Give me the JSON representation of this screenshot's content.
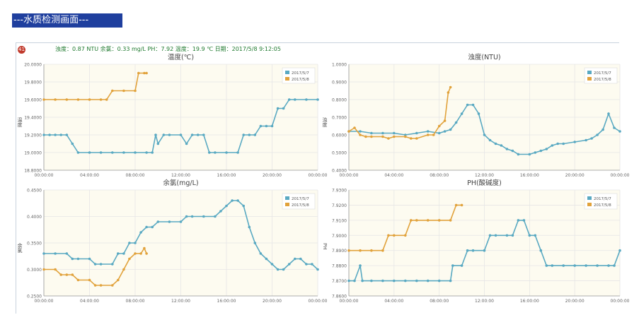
{
  "page_title": "---水质检测画面---",
  "status": {
    "badge": "41",
    "text": "浊度：0.87 NTU  余氯：0.33 mg/L  PH：7.92  温度：19.9 ℃  日期：2017/5/8 9:12:05"
  },
  "colors": {
    "series1": "#59a9c2",
    "series2": "#e1a23b",
    "grid": "#e6e6e6",
    "plot_bg": "#fdfbf0"
  },
  "chart_data": [
    {
      "type": "line",
      "title": "温度(℃)",
      "ylabel": "温度",
      "ylim": [
        18.8,
        20.0
      ],
      "yticks": [
        "18.8000",
        "19.0000",
        "19.2000",
        "19.4000",
        "19.6000",
        "19.8000",
        "20.0000"
      ],
      "xticks": [
        "00:00:00",
        "04:00:00",
        "08:00:00",
        "12:00:00",
        "16:00:00",
        "20:00:00",
        "00:00:00"
      ],
      "legend": [
        "2017/5/7",
        "2017/5/8"
      ],
      "series": [
        {
          "name": "2017/5/7",
          "points": [
            [
              0,
              19.2
            ],
            [
              0.5,
              19.2
            ],
            [
              1,
              19.2
            ],
            [
              1.5,
              19.2
            ],
            [
              2,
              19.2
            ],
            [
              2.5,
              19.1
            ],
            [
              3,
              19.0
            ],
            [
              4,
              19.0
            ],
            [
              5,
              19.0
            ],
            [
              6,
              19.0
            ],
            [
              7,
              19.0
            ],
            [
              8,
              19.0
            ],
            [
              9,
              19.0
            ],
            [
              9.5,
              19.0
            ],
            [
              9.8,
              19.2
            ],
            [
              10,
              19.1
            ],
            [
              10.5,
              19.2
            ],
            [
              11,
              19.2
            ],
            [
              12,
              19.2
            ],
            [
              12.5,
              19.1
            ],
            [
              13,
              19.2
            ],
            [
              13.5,
              19.2
            ],
            [
              14,
              19.2
            ],
            [
              14.5,
              19.0
            ],
            [
              15,
              19.0
            ],
            [
              16,
              19.0
            ],
            [
              17,
              19.0
            ],
            [
              17.5,
              19.2
            ],
            [
              18,
              19.2
            ],
            [
              18.5,
              19.2
            ],
            [
              19,
              19.3
            ],
            [
              19.5,
              19.3
            ],
            [
              20,
              19.3
            ],
            [
              20.5,
              19.5
            ],
            [
              21,
              19.5
            ],
            [
              21.5,
              19.6
            ],
            [
              22,
              19.6
            ],
            [
              23,
              19.6
            ],
            [
              24,
              19.6
            ]
          ]
        },
        {
          "name": "2017/5/8",
          "points": [
            [
              0,
              19.6
            ],
            [
              1,
              19.6
            ],
            [
              2,
              19.6
            ],
            [
              3,
              19.6
            ],
            [
              4,
              19.6
            ],
            [
              5,
              19.6
            ],
            [
              5.5,
              19.6
            ],
            [
              6,
              19.7
            ],
            [
              7,
              19.7
            ],
            [
              8,
              19.7
            ],
            [
              8.3,
              19.9
            ],
            [
              8.8,
              19.9
            ],
            [
              9,
              19.9
            ]
          ]
        }
      ]
    },
    {
      "type": "line",
      "title": "浊度(NTU)",
      "ylabel": "浊度",
      "ylim": [
        0.4,
        1.0
      ],
      "yticks": [
        "0.4000",
        "0.5000",
        "0.6000",
        "0.7000",
        "0.8000",
        "0.9000",
        "1.0000"
      ],
      "xticks": [
        "00:00:00",
        "04:00:00",
        "08:00:00",
        "12:00:00",
        "16:00:00",
        "20:00:00",
        "00:00:00"
      ],
      "legend": [
        "2017/5/7",
        "2017/5/8"
      ],
      "series": [
        {
          "name": "2017/5/7",
          "points": [
            [
              0,
              0.62
            ],
            [
              1,
              0.62
            ],
            [
              2,
              0.61
            ],
            [
              3,
              0.61
            ],
            [
              4,
              0.61
            ],
            [
              5,
              0.6
            ],
            [
              6,
              0.61
            ],
            [
              7,
              0.62
            ],
            [
              8,
              0.61
            ],
            [
              8.5,
              0.62
            ],
            [
              9,
              0.63
            ],
            [
              9.5,
              0.67
            ],
            [
              10,
              0.72
            ],
            [
              10.5,
              0.77
            ],
            [
              11,
              0.77
            ],
            [
              11.5,
              0.72
            ],
            [
              12,
              0.6
            ],
            [
              12.5,
              0.57
            ],
            [
              13,
              0.55
            ],
            [
              13.5,
              0.54
            ],
            [
              14,
              0.52
            ],
            [
              14.5,
              0.51
            ],
            [
              15,
              0.49
            ],
            [
              16,
              0.49
            ],
            [
              16.5,
              0.5
            ],
            [
              17,
              0.51
            ],
            [
              17.5,
              0.52
            ],
            [
              18,
              0.54
            ],
            [
              18.5,
              0.55
            ],
            [
              19,
              0.55
            ],
            [
              20,
              0.56
            ],
            [
              21,
              0.57
            ],
            [
              21.5,
              0.58
            ],
            [
              22,
              0.6
            ],
            [
              22.5,
              0.63
            ],
            [
              23,
              0.72
            ],
            [
              23.5,
              0.64
            ],
            [
              24,
              0.62
            ]
          ]
        },
        {
          "name": "2017/5/8",
          "points": [
            [
              0,
              0.62
            ],
            [
              0.5,
              0.64
            ],
            [
              1,
              0.6
            ],
            [
              1.5,
              0.59
            ],
            [
              2,
              0.59
            ],
            [
              3,
              0.59
            ],
            [
              3.5,
              0.58
            ],
            [
              4,
              0.59
            ],
            [
              5,
              0.59
            ],
            [
              5.5,
              0.58
            ],
            [
              6,
              0.58
            ],
            [
              7,
              0.6
            ],
            [
              7.5,
              0.6
            ],
            [
              8,
              0.65
            ],
            [
              8.5,
              0.68
            ],
            [
              8.8,
              0.84
            ],
            [
              9,
              0.87
            ]
          ]
        }
      ]
    },
    {
      "type": "line",
      "title": "余氯(mg/L)",
      "ylabel": "余氯",
      "ylim": [
        0.25,
        0.45
      ],
      "yticks": [
        "0.2500",
        "0.3000",
        "0.3500",
        "0.4000",
        "0.4500"
      ],
      "xticks": [
        "00:00:00",
        "04:00:00",
        "08:00:00",
        "12:00:00",
        "16:00:00",
        "20:00:00",
        "00:00:00"
      ],
      "legend": [
        "2017/5/7",
        "2017/5/8"
      ],
      "series": [
        {
          "name": "2017/5/7",
          "points": [
            [
              0,
              0.33
            ],
            [
              1,
              0.33
            ],
            [
              2,
              0.33
            ],
            [
              2.5,
              0.32
            ],
            [
              3,
              0.32
            ],
            [
              4,
              0.32
            ],
            [
              4.5,
              0.31
            ],
            [
              5,
              0.31
            ],
            [
              6,
              0.31
            ],
            [
              6.5,
              0.33
            ],
            [
              7,
              0.33
            ],
            [
              7.5,
              0.35
            ],
            [
              8,
              0.35
            ],
            [
              8.5,
              0.37
            ],
            [
              9,
              0.38
            ],
            [
              9.5,
              0.38
            ],
            [
              10,
              0.39
            ],
            [
              11,
              0.39
            ],
            [
              12,
              0.39
            ],
            [
              12.5,
              0.4
            ],
            [
              13,
              0.4
            ],
            [
              14,
              0.4
            ],
            [
              15,
              0.4
            ],
            [
              15.5,
              0.41
            ],
            [
              16,
              0.42
            ],
            [
              16.5,
              0.43
            ],
            [
              17,
              0.43
            ],
            [
              17.5,
              0.42
            ],
            [
              18,
              0.38
            ],
            [
              18.5,
              0.35
            ],
            [
              19,
              0.33
            ],
            [
              19.5,
              0.32
            ],
            [
              20,
              0.31
            ],
            [
              20.5,
              0.3
            ],
            [
              21,
              0.3
            ],
            [
              21.5,
              0.31
            ],
            [
              22,
              0.32
            ],
            [
              22.5,
              0.32
            ],
            [
              23,
              0.31
            ],
            [
              23.5,
              0.31
            ],
            [
              24,
              0.3
            ]
          ]
        },
        {
          "name": "2017/5/8",
          "points": [
            [
              0,
              0.3
            ],
            [
              1,
              0.3
            ],
            [
              1.5,
              0.29
            ],
            [
              2,
              0.29
            ],
            [
              2.5,
              0.29
            ],
            [
              3,
              0.28
            ],
            [
              4,
              0.28
            ],
            [
              4.5,
              0.27
            ],
            [
              5,
              0.27
            ],
            [
              6,
              0.27
            ],
            [
              6.5,
              0.28
            ],
            [
              7,
              0.3
            ],
            [
              7.5,
              0.32
            ],
            [
              8,
              0.33
            ],
            [
              8.5,
              0.33
            ],
            [
              8.8,
              0.34
            ],
            [
              9,
              0.33
            ]
          ]
        }
      ]
    },
    {
      "type": "line",
      "title": "PH(酸碱度)",
      "ylabel": "PH",
      "ylim": [
        7.86,
        7.93
      ],
      "yticks": [
        "7.8600",
        "7.8700",
        "7.8800",
        "7.8900",
        "7.9000",
        "7.9100",
        "7.9200",
        "7.9300"
      ],
      "xticks": [
        "00:00:00",
        "04:00:00",
        "08:00:00",
        "12:00:00",
        "16:00:00",
        "20:00:00",
        "00:00:00"
      ],
      "legend": [
        "2017/5/7",
        "2017/5/8"
      ],
      "series": [
        {
          "name": "2017/5/7",
          "points": [
            [
              0,
              7.87
            ],
            [
              0.5,
              7.87
            ],
            [
              1,
              7.88
            ],
            [
              1.2,
              7.87
            ],
            [
              2,
              7.87
            ],
            [
              3,
              7.87
            ],
            [
              4,
              7.87
            ],
            [
              5,
              7.87
            ],
            [
              6,
              7.87
            ],
            [
              7,
              7.87
            ],
            [
              8,
              7.87
            ],
            [
              9,
              7.87
            ],
            [
              9.2,
              7.88
            ],
            [
              10,
              7.88
            ],
            [
              10.5,
              7.89
            ],
            [
              11,
              7.89
            ],
            [
              12,
              7.89
            ],
            [
              12.5,
              7.9
            ],
            [
              13,
              7.9
            ],
            [
              14,
              7.9
            ],
            [
              14.5,
              7.9
            ],
            [
              15,
              7.91
            ],
            [
              15.5,
              7.91
            ],
            [
              16,
              7.9
            ],
            [
              16.5,
              7.9
            ],
            [
              17,
              7.89
            ],
            [
              17.5,
              7.88
            ],
            [
              18,
              7.88
            ],
            [
              19,
              7.88
            ],
            [
              20,
              7.88
            ],
            [
              21,
              7.88
            ],
            [
              22,
              7.88
            ],
            [
              23,
              7.88
            ],
            [
              23.5,
              7.88
            ],
            [
              24,
              7.89
            ]
          ]
        },
        {
          "name": "2017/5/8",
          "points": [
            [
              0,
              7.89
            ],
            [
              1,
              7.89
            ],
            [
              2,
              7.89
            ],
            [
              3,
              7.89
            ],
            [
              3.5,
              7.9
            ],
            [
              4,
              7.9
            ],
            [
              5,
              7.9
            ],
            [
              5.5,
              7.91
            ],
            [
              6,
              7.91
            ],
            [
              7,
              7.91
            ],
            [
              8,
              7.91
            ],
            [
              9,
              7.91
            ],
            [
              9.5,
              7.92
            ],
            [
              10,
              7.92
            ]
          ]
        }
      ]
    }
  ]
}
